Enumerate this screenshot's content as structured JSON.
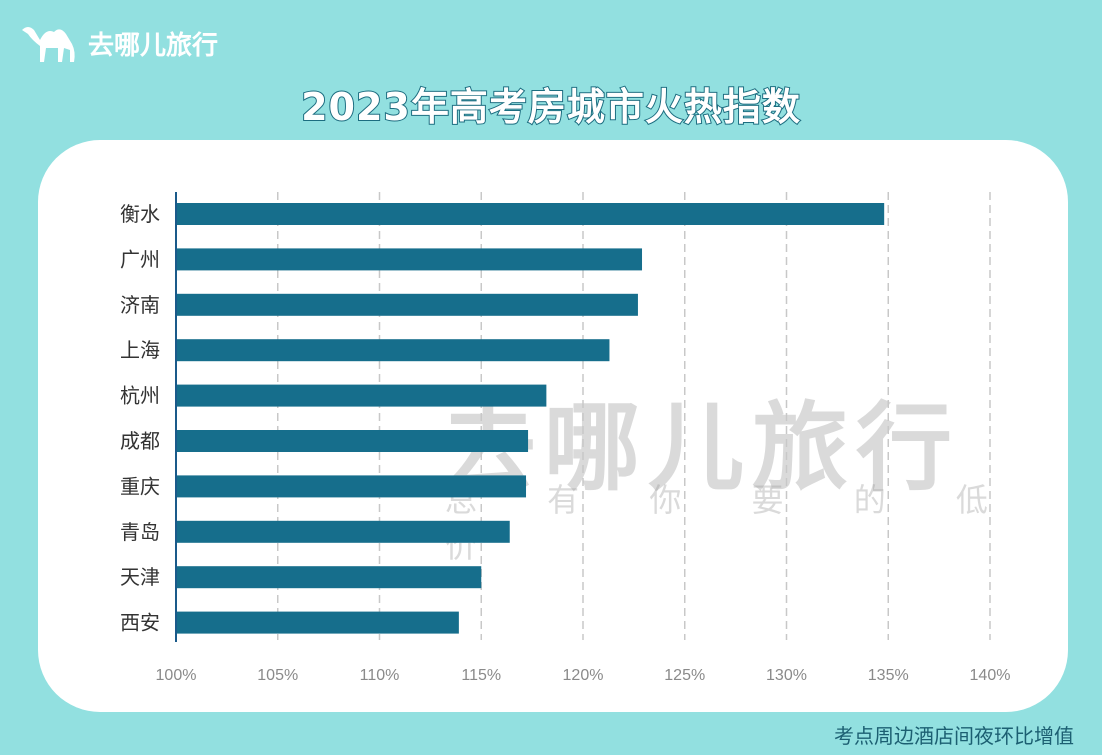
{
  "brand": {
    "name": "去哪儿旅行",
    "slogan": "总 有 你 要 的 低 价"
  },
  "colors": {
    "background": "#92e0e0",
    "bar": "#166e8c",
    "card": "#ffffff"
  },
  "footer": "考点周边酒店间夜环比增值",
  "chart_data": {
    "type": "bar",
    "orientation": "horizontal",
    "title": "2023年高考房城市火热指数",
    "categories": [
      "衡水",
      "广州",
      "济南",
      "上海",
      "杭州",
      "成都",
      "重庆",
      "青岛",
      "天津",
      "西安"
    ],
    "values": [
      134.8,
      122.9,
      122.7,
      121.3,
      118.2,
      117.3,
      117.2,
      116.4,
      115.0,
      113.9
    ],
    "unit": "%",
    "xlim": [
      100,
      140
    ],
    "xticks": [
      "100%",
      "105%",
      "110%",
      "115%",
      "120%",
      "125%",
      "130%",
      "135%",
      "140%"
    ],
    "grid": "vertical dashed",
    "legend": "none"
  }
}
